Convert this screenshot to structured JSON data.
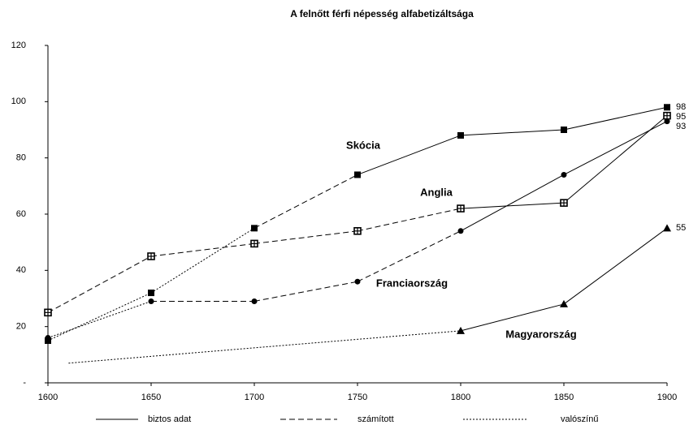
{
  "chart_data": {
    "type": "line",
    "title": "A felnőtt férfi népesség alfabetizáltsága",
    "xlim": [
      1600,
      1900
    ],
    "xticks": [
      1600,
      1650,
      1700,
      1750,
      1800,
      1850,
      1900
    ],
    "ylim": [
      0,
      120
    ],
    "yticks": [
      {
        "value": 0,
        "label": "-"
      },
      20,
      40,
      60,
      80,
      100,
      120
    ],
    "color": "#000000",
    "legend": [
      {
        "label": "biztos adat",
        "style": "solid"
      },
      {
        "label": "számított",
        "style": "dashed"
      },
      {
        "label": "valószínű",
        "style": "dotted"
      }
    ],
    "series": [
      {
        "name": "Skócia",
        "marker": "square",
        "x": [
          1600,
          1650,
          1700,
          1750,
          1800,
          1850,
          1900
        ],
        "values": [
          15,
          32,
          55,
          74,
          88,
          90,
          98
        ],
        "markers": [
          "square",
          "square",
          "square",
          "square",
          "square",
          "square",
          "square"
        ],
        "segment_styles": [
          "dotted",
          "dotted",
          "dashed",
          "solid",
          "solid",
          "solid"
        ],
        "value_labels": [
          null,
          null,
          null,
          null,
          null,
          null,
          "98"
        ]
      },
      {
        "name": "Anglia",
        "marker": "crossed-square",
        "x": [
          1600,
          1650,
          1700,
          1750,
          1800,
          1850,
          1900
        ],
        "values": [
          25,
          45,
          49.5,
          54,
          62,
          64,
          95
        ],
        "markers": [
          "crossed-square",
          "crossed-square",
          "crossed-square",
          "crossed-square",
          "crossed-square",
          "crossed-square",
          "crossed-square"
        ],
        "segment_styles": [
          "dashed",
          "dashed",
          "dashed",
          "dashed",
          "solid",
          "solid"
        ],
        "value_labels": [
          null,
          null,
          null,
          null,
          null,
          null,
          "95"
        ]
      },
      {
        "name": "Franciaország",
        "marker": "circle",
        "x": [
          1600,
          1650,
          1700,
          1750,
          1800,
          1850,
          1900
        ],
        "values": [
          16,
          29,
          29,
          36,
          54,
          74,
          93
        ],
        "markers": [
          "circle",
          "circle",
          "circle",
          "circle",
          "circle",
          "circle",
          "circle"
        ],
        "segment_styles": [
          "dotted",
          "dashed",
          "dashed",
          "dashed",
          "solid",
          "solid"
        ],
        "value_labels": [
          null,
          null,
          null,
          null,
          null,
          null,
          "93"
        ]
      },
      {
        "name": "Magyarország",
        "marker": "triangle",
        "x": [
          1610,
          1800,
          1850,
          1900
        ],
        "values": [
          7,
          18.5,
          28,
          55
        ],
        "markers": [
          null,
          "triangle",
          "triangle",
          "triangle"
        ],
        "segment_styles": [
          "dotted",
          "solid",
          "solid"
        ],
        "value_labels": [
          null,
          null,
          null,
          "55"
        ]
      }
    ]
  }
}
